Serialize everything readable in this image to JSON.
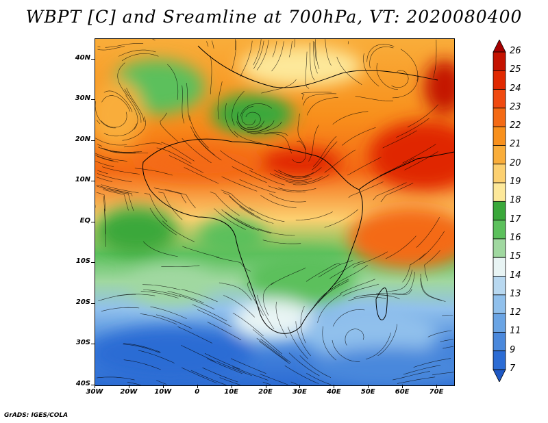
{
  "title": "WBPT [C] and Sreamline at 700hPa, VT: 2020080400",
  "footer": "GrADS: IGES/COLA",
  "map": {
    "lat_labels": [
      "40N",
      "30N",
      "20N",
      "10N",
      "EQ",
      "10S",
      "20S",
      "30S",
      "40S"
    ],
    "lon_labels": [
      "30W",
      "20W",
      "10W",
      "0",
      "10E",
      "20E",
      "30E",
      "40E",
      "50E",
      "60E",
      "70E"
    ],
    "lon_range": [
      -30,
      75
    ],
    "lat_range": [
      -40,
      45
    ],
    "variable": "Wet-bulb potential temperature",
    "overlay": "streamlines"
  },
  "colorbar": {
    "labels": [
      "26",
      "25",
      "24",
      "23",
      "22",
      "21",
      "20",
      "19",
      "18",
      "17",
      "16",
      "15",
      "14",
      "13",
      "12",
      "11",
      "9",
      "7"
    ],
    "colors": [
      "#a50000",
      "#c41200",
      "#e02800",
      "#f04a10",
      "#f46a14",
      "#f8901c",
      "#f9ad3a",
      "#fcd070",
      "#fde89a",
      "#3aa83a",
      "#5cc05c",
      "#a0d8a0",
      "#e8f4f4",
      "#b8d8f0",
      "#90c0ec",
      "#6aa4e4",
      "#4a88dc",
      "#2c6cd4",
      "#1e58c4"
    ]
  }
}
